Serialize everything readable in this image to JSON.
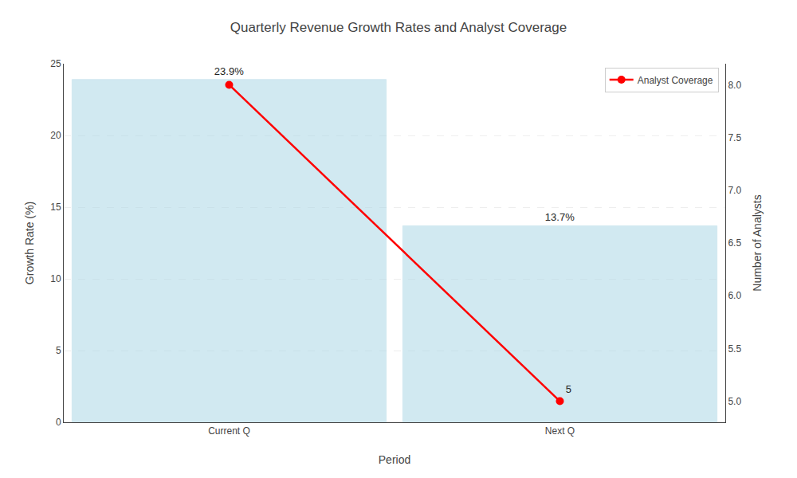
{
  "chart_data": {
    "type": "bar",
    "title": "Quarterly Revenue Growth Rates and Analyst Coverage",
    "xlabel": "Period",
    "ylabel": "Growth Rate (%)",
    "y2label": "Number of Analysts",
    "categories": [
      "Current Q",
      "Next Q"
    ],
    "series": [
      {
        "type": "bar",
        "color": "#add8e6",
        "values": [
          23.9,
          13.7
        ],
        "data_labels": true,
        "value_labels": [
          "23.9%",
          "13.7%"
        ]
      },
      {
        "type": "line",
        "name": "Analyst Coverage",
        "axis": "y2",
        "color": "red",
        "marker": "circle",
        "values": [
          8,
          5
        ],
        "data_labels": true,
        "value_labels": [
          null,
          "5"
        ]
      }
    ],
    "ylim": [
      0,
      25
    ],
    "yticks": [
      0,
      5,
      10,
      15,
      20,
      25
    ],
    "y2lim": [
      4.8,
      8.2
    ],
    "y2ticks": [
      {
        "value": 5,
        "label": "5.0"
      },
      {
        "value": 5.5,
        "label": "5.5"
      },
      {
        "value": 6,
        "label": "6.0"
      },
      {
        "value": 6.5,
        "label": "6.5"
      },
      {
        "value": 7,
        "label": "7.0"
      },
      {
        "value": 7.5,
        "label": "7.5"
      },
      {
        "value": 8,
        "label": "8.0"
      }
    ],
    "grid": true,
    "legend": "upper right"
  }
}
